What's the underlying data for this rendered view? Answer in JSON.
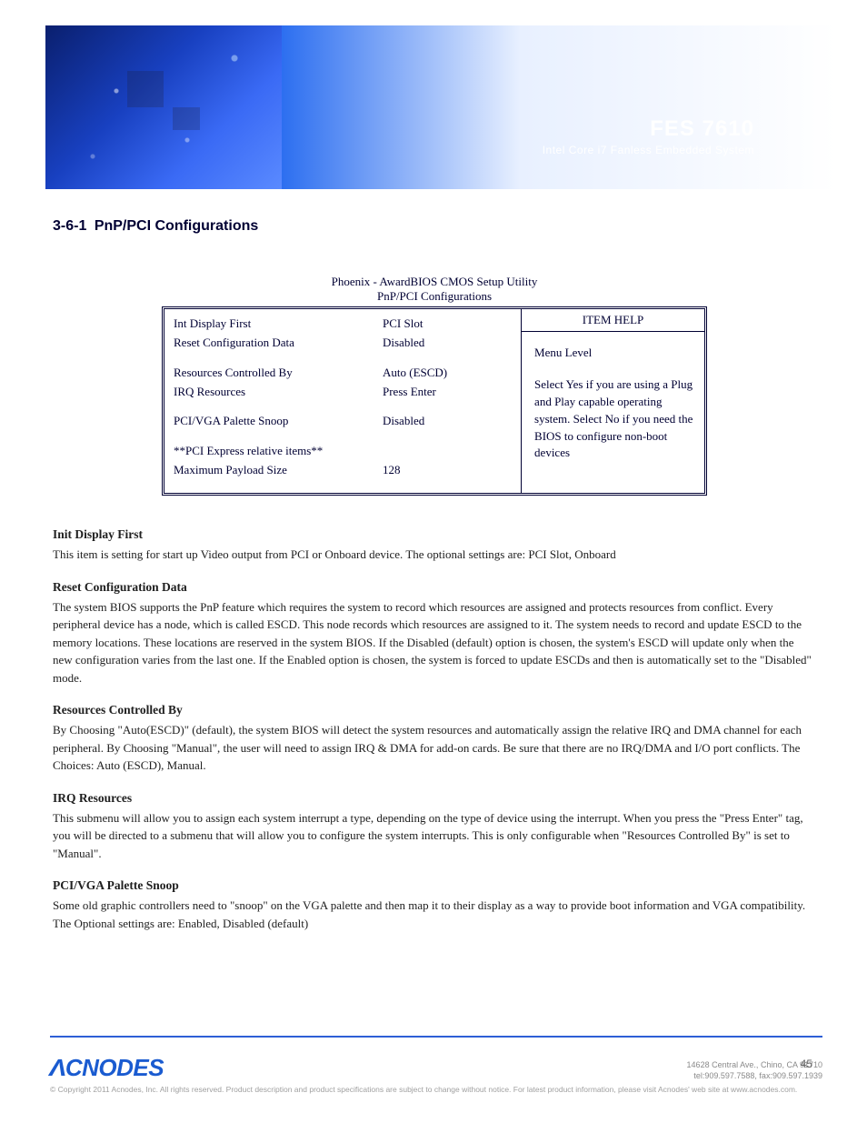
{
  "banner": {
    "model": "FES 7610",
    "desc": "Intel Core i7 Fanless Embedded System"
  },
  "chapter": {
    "num": "3-6-1",
    "name": "PnP/PCI Configurations"
  },
  "bios": {
    "title_line1": "Phoenix - AwardBIOS CMOS Setup Utility",
    "title_line2": "PnP/PCI Configurations",
    "rows": [
      {
        "label": "Int Display First",
        "value": "PCI Slot"
      },
      {
        "label": "Reset Configuration Data",
        "value": "Disabled"
      },
      {
        "label": "",
        "value": ""
      },
      {
        "label": "Resources Controlled By",
        "value": "Auto (ESCD)"
      },
      {
        "label": "IRQ Resources",
        "value": "Press Enter"
      },
      {
        "label": "",
        "value": ""
      },
      {
        "label": "PCI/VGA Palette Snoop",
        "value": "Disabled"
      },
      {
        "label": "",
        "value": ""
      },
      {
        "label": "**PCI Express relative items**",
        "value": ""
      },
      {
        "label": "Maximum Payload Size",
        "value": "128"
      }
    ],
    "help": {
      "header": "ITEM HELP",
      "level_label": "Menu Level",
      "text": "Select Yes if you are using a Plug and Play capable operating system. Select No if you need the BIOS to configure non-boot devices"
    }
  },
  "sections": [
    {
      "lbl": "Init Display First",
      "txt": "This item is setting for start up Video output from PCI or Onboard device. The optional settings are: PCI Slot, Onboard"
    },
    {
      "lbl": "Reset Configuration Data",
      "txt": "The system BIOS supports the PnP feature which requires the system to record which resources are assigned and protects resources from conflict. Every peripheral device has a node, which is called ESCD. This node records which resources are assigned to it. The system needs to record and update ESCD to the memory locations. These locations are reserved in the system BIOS. If the Disabled (default) option is chosen, the system's ESCD will update only when the new configuration varies from the last one. If the Enabled option is chosen, the system is forced to update ESCDs and then is automatically set to the \"Disabled\" mode."
    },
    {
      "lbl": "Resources Controlled By",
      "txt": "By Choosing \"Auto(ESCD)\" (default), the system BIOS will detect the system resources and automatically assign the relative IRQ and DMA channel for each peripheral. By Choosing \"Manual\", the user will need to assign IRQ & DMA for add-on cards. Be sure that there are no IRQ/DMA and I/O port conflicts. The Choices: Auto (ESCD), Manual."
    },
    {
      "lbl": "IRQ Resources",
      "txt": "This submenu will allow you to assign each system interrupt a type, depending on the type of device using the interrupt. When you press the \"Press Enter\" tag, you will be directed to a submenu that will allow you to configure the system interrupts. This is only configurable when \"Resources Controlled By\" is set to \"Manual\"."
    },
    {
      "lbl": "PCI/VGA Palette Snoop",
      "txt": "Some old graphic controllers need to \"snoop\" on the VGA palette and then map it to their display as a way to provide boot information and VGA compatibility. The Optional settings are: Enabled, Disabled (default)"
    }
  ],
  "footer": {
    "logo": "ACNODES",
    "addr1": "14628 Central Ave., Chino, CA 91710",
    "addr2": "tel:909.597.7588, fax:909.597.1939",
    "copyright": "© Copyright 2011 Acnodes, Inc. All rights reserved. Product description and product specifications are subject to change without notice. For latest product information, please visit Acnodes' web site at www.acnodes.com.",
    "pagenum": "45"
  }
}
